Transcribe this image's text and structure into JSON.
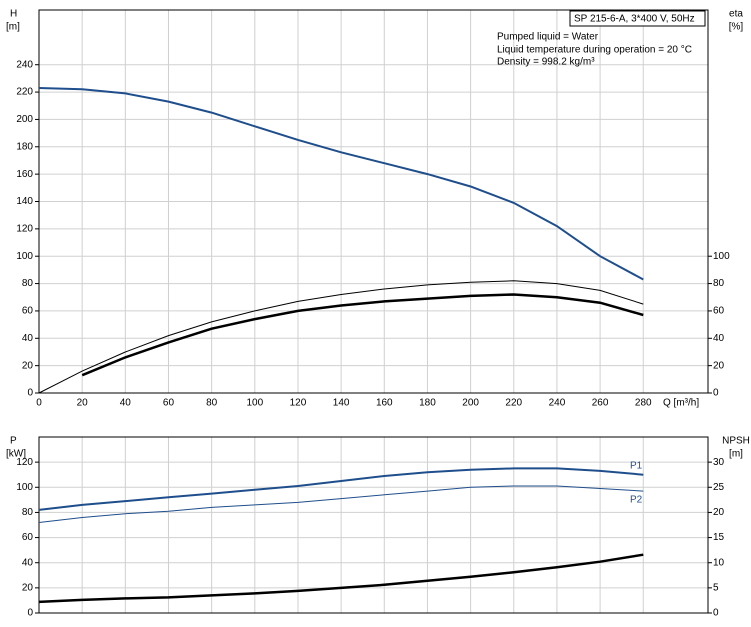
{
  "chart_data": [
    {
      "type": "line",
      "title": "SP 215-6-A, 3*400 V, 50Hz",
      "annotations": [
        "Pumped liquid = Water",
        "Liquid temperature during operation = 20 °C",
        "Density = 998.2 kg/m³"
      ],
      "ylabel": "H",
      "ylabel_unit": "[m]",
      "y2label": "eta",
      "y2label_unit": "[%]",
      "xlabel": "Q [m³/h]",
      "x": [
        0,
        20,
        40,
        60,
        80,
        100,
        120,
        140,
        160,
        180,
        200,
        220,
        240,
        260,
        280
      ],
      "xlim": [
        0,
        310
      ],
      "xticks": [
        0,
        20,
        40,
        60,
        80,
        100,
        120,
        140,
        160,
        180,
        200,
        220,
        240,
        260,
        280
      ],
      "ylim": [
        0,
        280
      ],
      "yticks": [
        0,
        20,
        40,
        60,
        80,
        100,
        120,
        140,
        160,
        180,
        200,
        220,
        240
      ],
      "y2lim": [
        0,
        280
      ],
      "y2ticks": [
        0,
        20,
        40,
        60,
        80,
        100
      ],
      "grid": true,
      "series": [
        {
          "color": "#1f4e8c",
          "width": 2,
          "values": [
            223,
            222,
            219,
            213,
            205,
            195,
            185,
            176,
            168,
            160,
            151,
            139,
            122,
            100,
            83
          ]
        },
        {
          "color": "#000000",
          "width": 1,
          "axis": "y2",
          "values": [
            0,
            16,
            30,
            42,
            52,
            60,
            67,
            72,
            76,
            79,
            81,
            82,
            80,
            75,
            65
          ]
        },
        {
          "color": "#000000",
          "width": 2.5,
          "axis": "y2",
          "values": [
            null,
            13,
            26,
            37,
            47,
            54,
            60,
            64,
            67,
            69,
            71,
            72,
            70,
            66,
            57
          ]
        }
      ]
    },
    {
      "type": "line",
      "ylabel": "P",
      "ylabel_unit": "[kW]",
      "y2label": "NPSH",
      "y2label_unit": "[m]",
      "x": [
        0,
        20,
        40,
        60,
        80,
        100,
        120,
        140,
        160,
        180,
        200,
        220,
        240,
        260,
        280
      ],
      "xlim": [
        0,
        310
      ],
      "xticks": [
        0,
        20,
        40,
        60,
        80,
        100,
        120,
        140,
        160,
        180,
        200,
        220,
        240,
        260,
        280
      ],
      "ylim": [
        0,
        140
      ],
      "yticks": [
        0,
        20,
        40,
        60,
        80,
        100,
        120
      ],
      "y2lim": [
        0,
        35
      ],
      "y2ticks": [
        0,
        5,
        10,
        15,
        20,
        25,
        30
      ],
      "grid": true,
      "series": [
        {
          "name": "P1",
          "color": "#1f4e8c",
          "width": 2,
          "values": [
            82,
            86,
            89,
            92,
            95,
            98,
            101,
            105,
            109,
            112,
            114,
            115,
            115,
            113,
            110
          ]
        },
        {
          "name": "P2",
          "color": "#1f4e8c",
          "width": 1,
          "values": [
            72,
            76,
            79,
            81,
            84,
            86,
            88,
            91,
            94,
            97,
            100,
            101,
            101,
            99,
            97
          ]
        },
        {
          "color": "#000000",
          "width": 2.5,
          "axis": "y2",
          "values": [
            2.2,
            2.6,
            2.9,
            3.1,
            3.5,
            3.9,
            4.4,
            5,
            5.6,
            6.4,
            7.2,
            8.1,
            9.1,
            10.2,
            11.6
          ]
        }
      ]
    }
  ]
}
